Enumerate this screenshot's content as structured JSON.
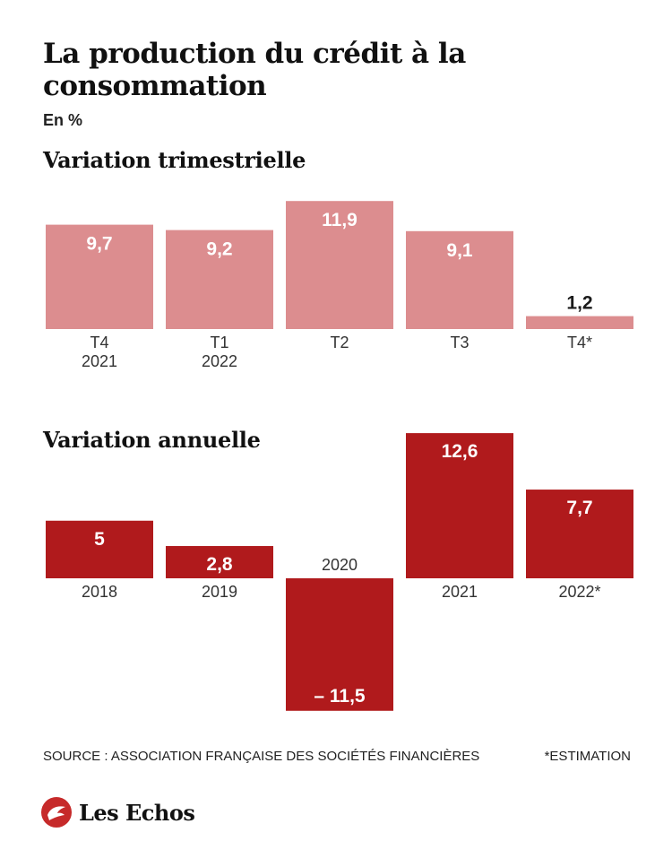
{
  "title": "La production du crédit à la consommation",
  "unit": "En %",
  "footer": {
    "source": "SOURCE : ASSOCIATION FRANÇAISE DES SOCIÉTÉS FINANCIÈRES",
    "note": "*ESTIMATION",
    "brand": "Les Echos"
  },
  "colors": {
    "quarterly_bar": "#dc8d8f",
    "annual_bar": "#b01a1c",
    "logo": "#c62a2a"
  },
  "chart_data": [
    {
      "type": "bar",
      "title": "Variation trimestrielle",
      "categories": [
        "T4\n2021",
        "T1\n2022",
        "T2",
        "T3",
        "T4*"
      ],
      "labels": [
        "9,7",
        "9,2",
        "11,9",
        "9,1",
        "1,2"
      ],
      "values": [
        9.7,
        9.2,
        11.9,
        9.1,
        1.2
      ],
      "ylim": [
        0,
        12
      ]
    },
    {
      "type": "bar",
      "title": "Variation annuelle",
      "categories": [
        "2018",
        "2019",
        "2020",
        "2021",
        "2022*"
      ],
      "labels": [
        "5",
        "2,8",
        "– 11,5",
        "12,6",
        "7,7"
      ],
      "values": [
        5,
        2.8,
        -11.5,
        12.6,
        7.7
      ],
      "ylim": [
        -11.5,
        12.6
      ]
    }
  ]
}
